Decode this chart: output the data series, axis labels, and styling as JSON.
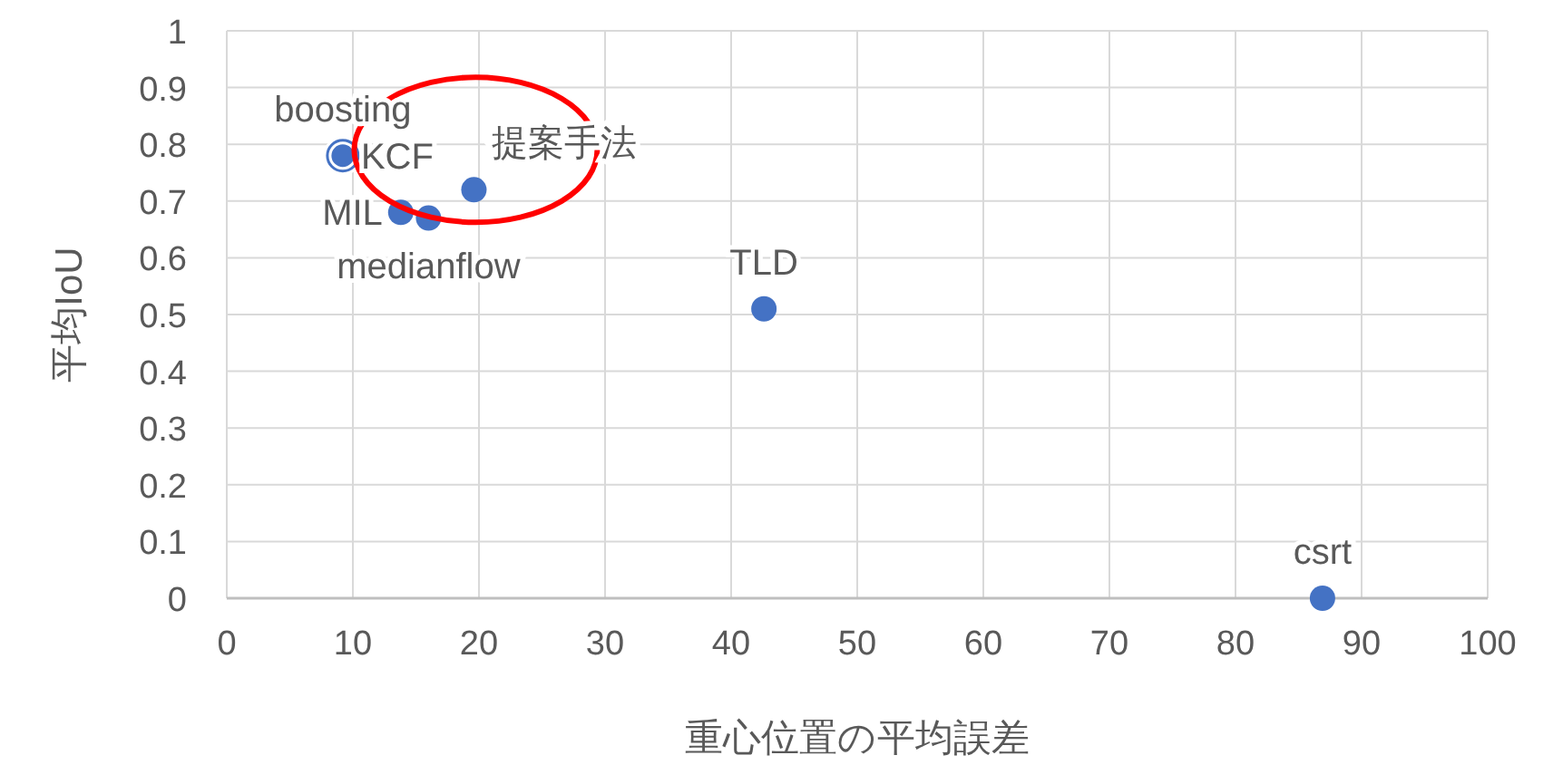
{
  "chart_data": {
    "type": "scatter",
    "xlabel": "重心位置の平均誤差",
    "ylabel": "平均IoU",
    "xlim": [
      0,
      100
    ],
    "xticks": [
      0,
      10,
      20,
      30,
      40,
      50,
      60,
      70,
      80,
      90,
      100
    ],
    "ylim": [
      0,
      1
    ],
    "yticks": [
      0,
      0.1,
      0.2,
      0.3,
      0.4,
      0.5,
      0.6,
      0.7,
      0.8,
      0.9,
      1
    ],
    "grid": true,
    "marker": "circle",
    "series": [
      {
        "name": "boosting",
        "color": "#4472c4",
        "x": [
          9.2
        ],
        "values": [
          0.78
        ]
      },
      {
        "name": "KCF",
        "color": "#4472c4",
        "x": [
          9.2
        ],
        "values": [
          0.78
        ]
      },
      {
        "name": "MIL",
        "color": "#4472c4",
        "x": [
          13.8
        ],
        "values": [
          0.68
        ]
      },
      {
        "name": "medianflow",
        "color": "#4472c4",
        "x": [
          16
        ],
        "values": [
          0.67
        ]
      },
      {
        "name": "提案手法",
        "color": "#4472c4",
        "x": [
          19.6
        ],
        "values": [
          0.72
        ]
      },
      {
        "name": "TLD",
        "color": "#4472c4",
        "x": [
          42.6
        ],
        "values": [
          0.51
        ]
      },
      {
        "name": "csrt",
        "color": "#4472c4",
        "x": [
          86.9
        ],
        "values": [
          0
        ]
      }
    ]
  }
}
